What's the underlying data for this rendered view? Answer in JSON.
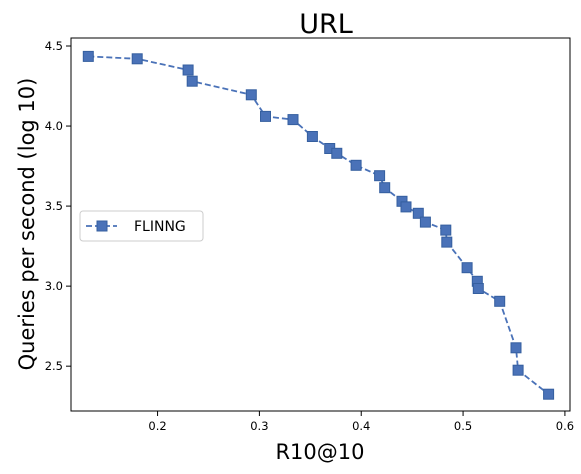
{
  "chart_data": {
    "type": "line",
    "title": "URL",
    "xlabel": "R10@10",
    "ylabel": "Queries per second (log 10)",
    "xlim": [
      0.115,
      0.605
    ],
    "ylim": [
      2.22,
      4.55
    ],
    "xticks": [
      0.2,
      0.3,
      0.4,
      0.5,
      0.6
    ],
    "yticks": [
      2.5,
      3.0,
      3.5,
      4.0,
      4.5
    ],
    "xtick_labels": [
      "0.2",
      "0.3",
      "0.4",
      "0.5",
      "0.6"
    ],
    "ytick_labels": [
      "2.5",
      "3.0",
      "3.5",
      "4.0",
      "4.5"
    ],
    "grid": false,
    "legend": "center-left",
    "series": [
      {
        "name": "FLINNG",
        "color": "#4a72b8",
        "marker": "square",
        "line_style": "dashed",
        "x": [
          0.132,
          0.18,
          0.23,
          0.234,
          0.292,
          0.306,
          0.333,
          0.352,
          0.369,
          0.376,
          0.395,
          0.418,
          0.423,
          0.44,
          0.444,
          0.456,
          0.463,
          0.483,
          0.484,
          0.504,
          0.514,
          0.515,
          0.536,
          0.552,
          0.554,
          0.584
        ],
        "y": [
          4.435,
          4.42,
          4.35,
          4.28,
          4.195,
          4.06,
          4.04,
          3.935,
          3.86,
          3.83,
          3.755,
          3.69,
          3.615,
          3.53,
          3.495,
          3.455,
          3.4,
          3.35,
          3.275,
          3.115,
          3.03,
          2.985,
          2.905,
          2.615,
          2.475,
          2.325
        ]
      }
    ]
  }
}
